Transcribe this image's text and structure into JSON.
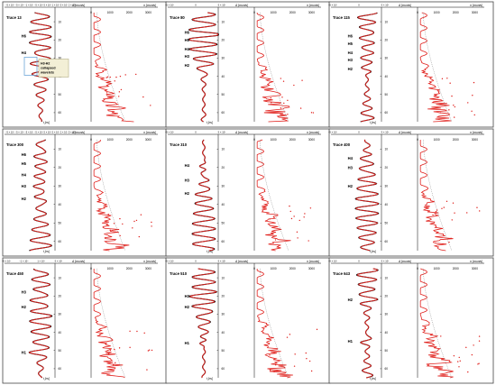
{
  "colors": {
    "trace": "#000000",
    "model": "#e0201c",
    "border": "#444444",
    "label_box_fill": "#f3efd6",
    "label_box_stroke": "#b3ad84",
    "highlight_box": "#6da6d8",
    "envelope": "#888888"
  },
  "chart_data": {
    "type": "line",
    "common": {
      "left_axis_label": "A [counts]",
      "left_axis_ticks": [
        "−5 × 10⁴",
        "0",
        "5 × 10⁴"
      ],
      "right_axis_label": "n [counts]",
      "right_axis_ticks": [
        "0",
        "1000",
        "2000",
        "3000"
      ],
      "y_axis_label": "t [ns]",
      "y_ticks": [
        "10",
        "20",
        "30",
        "40",
        "50",
        "60"
      ],
      "ylim": [
        5,
        65
      ]
    },
    "panels": [
      {
        "trace": "Trace 13",
        "left_axis_ticks": [
          "−5 × 10⁴ −5 × 10⁴ −1 × 10⁴ −5 × 10⁴ 5 × 10⁴ 1 × 10⁴ 5 × 10⁴ 2 × 10⁴"
        ],
        "horizons": [
          {
            "name": "H6",
            "t": 18
          },
          {
            "name": "H4",
            "t": 27
          }
        ],
        "annotation": "H3-H2 collapsed wavelets"
      },
      {
        "trace": "Trace 80",
        "horizons": [
          {
            "name": "H6",
            "t": 16
          },
          {
            "name": "H5",
            "t": 20
          },
          {
            "name": "H4",
            "t": 25
          },
          {
            "name": "H3",
            "t": 29
          },
          {
            "name": "H2",
            "t": 34
          }
        ]
      },
      {
        "trace": "Trace 115",
        "horizons": [
          {
            "name": "H6",
            "t": 18
          },
          {
            "name": "H5",
            "t": 22
          },
          {
            "name": "H4",
            "t": 27
          },
          {
            "name": "H3",
            "t": 31
          },
          {
            "name": "H2",
            "t": 36
          }
        ]
      },
      {
        "trace": "Trace 300",
        "left_axis_ticks": [
          "−5 × 10⁴ −5 × 10⁴ −5 × 10⁴ −5 × 10⁴ 5 × 10⁴ 5 × 10⁴ 2 × 10⁴ 5 × 10⁴"
        ],
        "horizons": [
          {
            "name": "H6",
            "t": 13
          },
          {
            "name": "H5",
            "t": 18
          },
          {
            "name": "H4",
            "t": 24
          },
          {
            "name": "H3",
            "t": 30
          },
          {
            "name": "H2",
            "t": 37
          }
        ]
      },
      {
        "trace": "Trace 310",
        "horizons": [
          {
            "name": "H4",
            "t": 19
          },
          {
            "name": "H3",
            "t": 27
          },
          {
            "name": "H2",
            "t": 34
          }
        ]
      },
      {
        "trace": "Trace 400",
        "horizons": [
          {
            "name": "H4",
            "t": 15
          },
          {
            "name": "H3",
            "t": 20
          },
          {
            "name": "H2",
            "t": 30
          }
        ]
      },
      {
        "trace": "Trace 450",
        "left_axis_ticks": [
          "−5 × 10⁴",
          "−1 × 10⁴",
          "1 × 10⁴",
          "5 × 10⁴"
        ],
        "horizons": [
          {
            "name": "H3",
            "t": 18
          },
          {
            "name": "H2",
            "t": 26
          },
          {
            "name": "H1",
            "t": 51
          }
        ]
      },
      {
        "trace": "Trace 510",
        "horizons": [
          {
            "name": "H3",
            "t": 20
          },
          {
            "name": "H2",
            "t": 26
          },
          {
            "name": "H1",
            "t": 46
          }
        ]
      },
      {
        "trace": "Trace 643",
        "horizons": [
          {
            "name": "H2",
            "t": 22
          },
          {
            "name": "H1",
            "t": 45
          }
        ]
      }
    ],
    "series": [
      {
        "name": "",
        "color": "#000000"
      },
      {
        "name": "",
        "color": "#e0201c"
      }
    ]
  }
}
